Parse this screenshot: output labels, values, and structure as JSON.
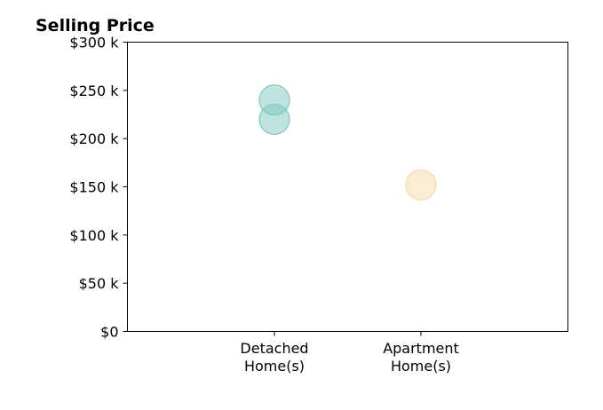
{
  "chart_data": {
    "type": "scatter",
    "title": "Selling Price",
    "xlabel": "",
    "ylabel": "",
    "categories": [
      [
        "Detached",
        "Home(s)"
      ],
      [
        "Apartment",
        "Home(s)"
      ]
    ],
    "ylim": [
      0,
      300000
    ],
    "yticks": [
      {
        "value": 0,
        "label": "$0"
      },
      {
        "value": 50000,
        "label": "$50 k"
      },
      {
        "value": 100000,
        "label": "$100 k"
      },
      {
        "value": 150000,
        "label": "$150 k"
      },
      {
        "value": 200000,
        "label": "$200 k"
      },
      {
        "value": 250000,
        "label": "$250 k"
      },
      {
        "value": 300000,
        "label": "$300 k"
      }
    ],
    "points": [
      {
        "category": 0,
        "value": 240000,
        "color": "#7fc8c0"
      },
      {
        "category": 0,
        "value": 220000,
        "color": "#7fc8c0"
      },
      {
        "category": 1,
        "value": 152000,
        "color": "#f5dca8"
      }
    ],
    "grid": false,
    "legend": "none"
  }
}
